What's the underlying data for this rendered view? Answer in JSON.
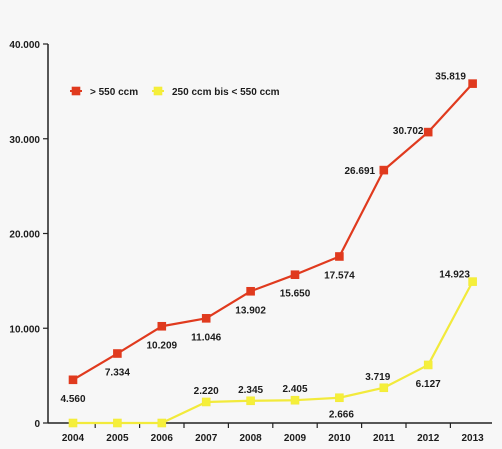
{
  "chart_data": {
    "type": "line",
    "title": "",
    "xlabel": "",
    "ylabel": "",
    "categories": [
      "2004",
      "2005",
      "2006",
      "2007",
      "2008",
      "2009",
      "2010",
      "2011",
      "2012",
      "2013"
    ],
    "ylim": [
      0,
      40000
    ],
    "y_ticks": [
      0,
      10000,
      20000,
      30000,
      40000
    ],
    "y_tick_labels": [
      "0",
      "10.000",
      "20.000",
      "30.000",
      "40.000"
    ],
    "grid": false,
    "legend_position": "top-left",
    "series": [
      {
        "name": "> 550 ccm",
        "color": "#e03a1e",
        "marker_color": "#e03a1e",
        "values": [
          4560,
          7334,
          10209,
          11046,
          13902,
          15650,
          17574,
          26691,
          30702,
          35819
        ],
        "labels": [
          "4.560",
          "7.334",
          "10.209",
          "11.046",
          "13.902",
          "15.650",
          "17.574",
          "26.691",
          "30.702",
          "35.819"
        ]
      },
      {
        "name": "250 ccm bis < 550 ccm",
        "color": "#f2ea3b",
        "marker_color": "#f5ef3a",
        "values": [
          0,
          0,
          0,
          2220,
          2345,
          2405,
          2666,
          3719,
          6127,
          14923
        ],
        "labels": [
          "",
          "",
          "",
          "2.220",
          "2.345",
          "2.405",
          "2.666",
          "3.719",
          "6.127",
          "14.923"
        ]
      }
    ]
  }
}
